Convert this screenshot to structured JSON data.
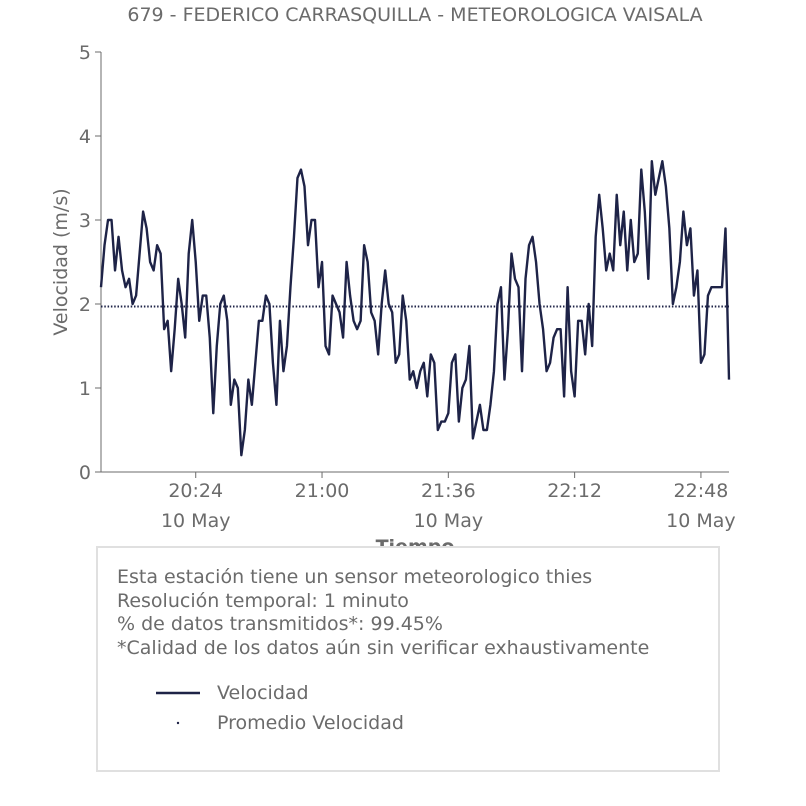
{
  "chart_data": {
    "type": "line",
    "title": "679 - FEDERICO CARRASQUILLA - METEOROLOGICA VAISALA",
    "xlabel": "Tiempo",
    "ylabel": "Velocidad (m/s)",
    "ylim": [
      0,
      5
    ],
    "xlim": [
      "2024-05-10 19:57",
      "2024-05-10 22:56"
    ],
    "y_ticks": [
      "0",
      "1",
      "2",
      "3",
      "4",
      "5"
    ],
    "x_ticks": [
      {
        "time": "2024-05-10 20:24",
        "label": "20:24",
        "date_label": "10 May"
      },
      {
        "time": "2024-05-10 21:00",
        "label": "21:00",
        "date_label": ""
      },
      {
        "time": "2024-05-10 21:36",
        "label": "21:36",
        "date_label": "10 May"
      },
      {
        "time": "2024-05-10 22:12",
        "label": "22:12",
        "date_label": ""
      },
      {
        "time": "2024-05-10 22:48",
        "label": "22:48",
        "date_label": "10 May"
      }
    ],
    "colors": {
      "line": "#1e2347",
      "axis": "#6b6b6b",
      "text": "#6b6b6b",
      "box_border": "#e0e0e0"
    },
    "grid": false,
    "legend_position": "bottom",
    "series": [
      {
        "name": "Velocidad",
        "style": "solid line",
        "x": [
          "2024-05-10 19:57",
          "2024-05-10 19:58",
          "2024-05-10 19:59",
          "2024-05-10 20:00",
          "2024-05-10 20:01",
          "2024-05-10 20:02",
          "2024-05-10 20:03",
          "2024-05-10 20:04",
          "2024-05-10 20:05",
          "2024-05-10 20:06",
          "2024-05-10 20:07",
          "2024-05-10 20:08",
          "2024-05-10 20:09",
          "2024-05-10 20:10",
          "2024-05-10 20:11",
          "2024-05-10 20:12",
          "2024-05-10 20:13",
          "2024-05-10 20:14",
          "2024-05-10 20:15",
          "2024-05-10 20:16",
          "2024-05-10 20:17",
          "2024-05-10 20:18",
          "2024-05-10 20:19",
          "2024-05-10 20:20",
          "2024-05-10 20:21",
          "2024-05-10 20:22",
          "2024-05-10 20:23",
          "2024-05-10 20:24",
          "2024-05-10 20:25",
          "2024-05-10 20:26",
          "2024-05-10 20:27",
          "2024-05-10 20:28",
          "2024-05-10 20:29",
          "2024-05-10 20:30",
          "2024-05-10 20:31",
          "2024-05-10 20:32",
          "2024-05-10 20:33",
          "2024-05-10 20:34",
          "2024-05-10 20:35",
          "2024-05-10 20:36",
          "2024-05-10 20:37",
          "2024-05-10 20:38",
          "2024-05-10 20:39",
          "2024-05-10 20:40",
          "2024-05-10 20:41",
          "2024-05-10 20:42",
          "2024-05-10 20:43",
          "2024-05-10 20:44",
          "2024-05-10 20:45",
          "2024-05-10 20:46",
          "2024-05-10 20:47",
          "2024-05-10 20:48",
          "2024-05-10 20:49",
          "2024-05-10 20:50",
          "2024-05-10 20:51",
          "2024-05-10 20:52",
          "2024-05-10 20:53",
          "2024-05-10 20:54",
          "2024-05-10 20:55",
          "2024-05-10 20:56",
          "2024-05-10 20:57",
          "2024-05-10 20:58",
          "2024-05-10 20:59",
          "2024-05-10 21:00",
          "2024-05-10 21:01",
          "2024-05-10 21:02",
          "2024-05-10 21:03",
          "2024-05-10 21:04",
          "2024-05-10 21:05",
          "2024-05-10 21:06",
          "2024-05-10 21:07",
          "2024-05-10 21:08",
          "2024-05-10 21:09",
          "2024-05-10 21:10",
          "2024-05-10 21:11",
          "2024-05-10 21:12",
          "2024-05-10 21:13",
          "2024-05-10 21:14",
          "2024-05-10 21:15",
          "2024-05-10 21:16",
          "2024-05-10 21:17",
          "2024-05-10 21:18",
          "2024-05-10 21:19",
          "2024-05-10 21:20",
          "2024-05-10 21:21",
          "2024-05-10 21:22",
          "2024-05-10 21:23",
          "2024-05-10 21:24",
          "2024-05-10 21:25",
          "2024-05-10 21:26",
          "2024-05-10 21:27",
          "2024-05-10 21:28",
          "2024-05-10 21:29",
          "2024-05-10 21:30",
          "2024-05-10 21:31",
          "2024-05-10 21:32",
          "2024-05-10 21:33",
          "2024-05-10 21:34",
          "2024-05-10 21:35",
          "2024-05-10 21:36",
          "2024-05-10 21:37",
          "2024-05-10 21:38",
          "2024-05-10 21:39",
          "2024-05-10 21:40",
          "2024-05-10 21:41",
          "2024-05-10 21:42",
          "2024-05-10 21:43",
          "2024-05-10 21:44",
          "2024-05-10 21:45",
          "2024-05-10 21:46",
          "2024-05-10 21:47",
          "2024-05-10 21:48",
          "2024-05-10 21:49",
          "2024-05-10 21:50",
          "2024-05-10 21:51",
          "2024-05-10 21:52",
          "2024-05-10 21:53",
          "2024-05-10 21:54",
          "2024-05-10 21:55",
          "2024-05-10 21:56",
          "2024-05-10 21:57",
          "2024-05-10 21:58",
          "2024-05-10 21:59",
          "2024-05-10 22:00",
          "2024-05-10 22:01",
          "2024-05-10 22:02",
          "2024-05-10 22:03",
          "2024-05-10 22:04",
          "2024-05-10 22:05",
          "2024-05-10 22:06",
          "2024-05-10 22:07",
          "2024-05-10 22:08",
          "2024-05-10 22:09",
          "2024-05-10 22:10",
          "2024-05-10 22:11",
          "2024-05-10 22:12",
          "2024-05-10 22:13",
          "2024-05-10 22:14",
          "2024-05-10 22:15",
          "2024-05-10 22:16",
          "2024-05-10 22:17",
          "2024-05-10 22:18",
          "2024-05-10 22:19",
          "2024-05-10 22:20",
          "2024-05-10 22:21",
          "2024-05-10 22:22",
          "2024-05-10 22:23",
          "2024-05-10 22:24",
          "2024-05-10 22:25",
          "2024-05-10 22:26",
          "2024-05-10 22:27",
          "2024-05-10 22:28",
          "2024-05-10 22:29",
          "2024-05-10 22:30",
          "2024-05-10 22:31",
          "2024-05-10 22:32",
          "2024-05-10 22:33",
          "2024-05-10 22:34",
          "2024-05-10 22:35",
          "2024-05-10 22:36",
          "2024-05-10 22:37",
          "2024-05-10 22:38",
          "2024-05-10 22:39",
          "2024-05-10 22:40",
          "2024-05-10 22:41",
          "2024-05-10 22:42",
          "2024-05-10 22:43",
          "2024-05-10 22:44",
          "2024-05-10 22:45",
          "2024-05-10 22:46",
          "2024-05-10 22:47",
          "2024-05-10 22:48",
          "2024-05-10 22:49",
          "2024-05-10 22:50",
          "2024-05-10 22:51",
          "2024-05-10 22:52",
          "2024-05-10 22:53",
          "2024-05-10 22:54",
          "2024-05-10 22:55",
          "2024-05-10 22:56"
        ],
        "values": [
          2.2,
          2.7,
          3.0,
          3.0,
          2.4,
          2.8,
          2.4,
          2.2,
          2.3,
          2.0,
          2.1,
          2.6,
          3.1,
          2.9,
          2.5,
          2.4,
          2.7,
          2.6,
          1.7,
          1.8,
          1.2,
          1.7,
          2.3,
          2.0,
          1.6,
          2.6,
          3.0,
          2.5,
          1.8,
          2.1,
          2.1,
          1.6,
          0.7,
          1.5,
          2.0,
          2.1,
          1.8,
          0.8,
          1.1,
          1.0,
          0.2,
          0.5,
          1.1,
          0.8,
          1.3,
          1.8,
          1.8,
          2.1,
          2.0,
          1.3,
          0.8,
          1.8,
          1.2,
          1.5,
          2.2,
          2.8,
          3.5,
          3.6,
          3.4,
          2.7,
          3.0,
          3.0,
          2.2,
          2.5,
          1.5,
          1.4,
          2.1,
          2.0,
          1.9,
          1.6,
          2.5,
          2.1,
          1.8,
          1.7,
          1.8,
          2.7,
          2.5,
          1.9,
          1.8,
          1.4,
          2.0,
          2.4,
          2.0,
          1.9,
          1.3,
          1.4,
          2.1,
          1.8,
          1.1,
          1.2,
          1.0,
          1.2,
          1.3,
          0.9,
          1.4,
          1.3,
          0.5,
          0.6,
          0.6,
          0.7,
          1.3,
          1.4,
          0.6,
          1.0,
          1.1,
          1.5,
          0.4,
          0.6,
          0.8,
          0.5,
          0.5,
          0.8,
          1.2,
          2.0,
          2.2,
          1.1,
          1.7,
          2.6,
          2.3,
          2.2,
          1.2,
          2.3,
          2.7,
          2.8,
          2.5,
          2.0,
          1.7,
          1.2,
          1.3,
          1.6,
          1.7,
          1.7,
          0.9,
          2.2,
          1.2,
          0.9,
          1.8,
          1.8,
          1.4,
          2.0,
          1.5,
          2.8,
          3.3,
          2.9,
          2.4,
          2.6,
          2.4,
          3.3,
          2.7,
          3.1,
          2.4,
          3.0,
          2.5,
          2.6,
          3.6,
          3.1,
          2.3,
          3.7,
          3.3,
          3.5,
          3.7,
          3.4,
          2.9,
          2.0,
          2.2,
          2.5,
          3.1,
          2.7,
          2.9,
          2.1,
          2.4,
          1.3,
          1.4,
          2.1,
          2.2,
          2.2,
          2.2,
          2.2,
          2.9,
          1.1
        ]
      },
      {
        "name": "Promedio Velocidad",
        "style": "dotted line",
        "constant": 1.97
      }
    ]
  },
  "info_box": {
    "lines": [
      "Esta estación tiene un sensor meteorologico thies",
      "Resolución temporal: 1 minuto",
      "% de datos transmitidos*: 99.45%",
      "*Calidad de los datos aún sin verificar exhaustivamente"
    ]
  },
  "legend": {
    "items": [
      {
        "label": "Velocidad",
        "icon": "solid-line-icon"
      },
      {
        "label": "Promedio Velocidad",
        "icon": "dot-icon"
      }
    ]
  }
}
